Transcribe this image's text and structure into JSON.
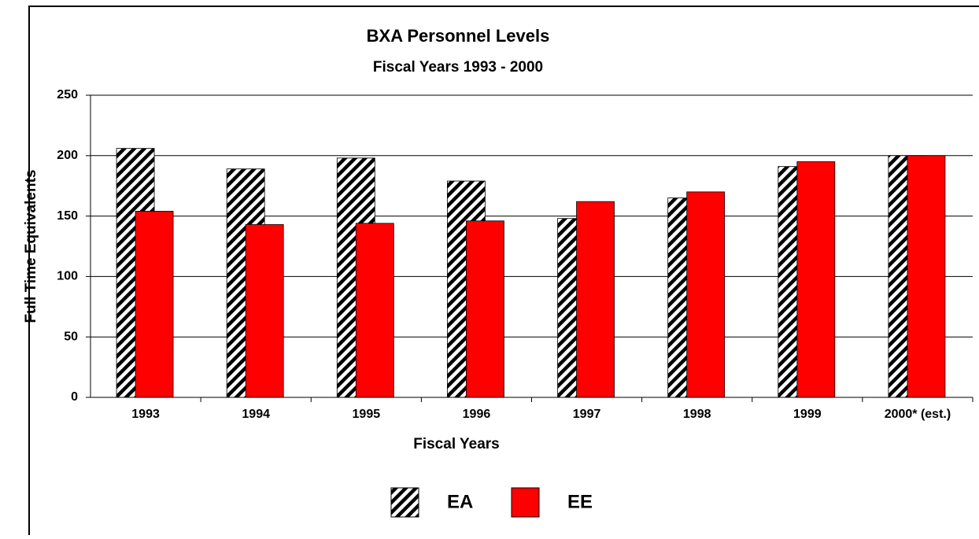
{
  "chart_data": {
    "type": "bar",
    "title": "BXA Personnel Levels",
    "subtitle": "Fiscal Years 1993 - 2000",
    "x_label": "Fiscal Years",
    "y_label": "Full Time Equivalents",
    "categories": [
      "1993",
      "1994",
      "1995",
      "1996",
      "1997",
      "1998",
      "1999",
      "2000* (est.)"
    ],
    "series": [
      {
        "name": "EA",
        "color": "hatch",
        "values": [
          206,
          189,
          198,
          179,
          148,
          165,
          191,
          200
        ]
      },
      {
        "name": "EE",
        "color": "#ff0000",
        "values": [
          154,
          143,
          144,
          146,
          162,
          170,
          195,
          200
        ]
      }
    ],
    "ylim": [
      0,
      250
    ],
    "yticks": [
      0,
      50,
      100,
      150,
      200,
      250
    ],
    "grid": true,
    "legend": "bottom"
  }
}
